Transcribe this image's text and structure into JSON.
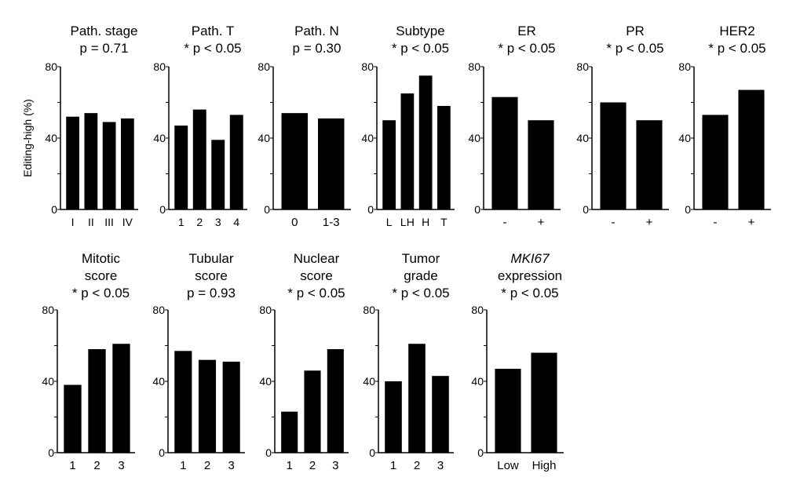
{
  "ylabel": "Editing-high (%)",
  "chart_data": [
    {
      "type": "bar",
      "title": [
        "Path. stage",
        "p = 0.71"
      ],
      "categories": [
        "I",
        "II",
        "III",
        "IV"
      ],
      "values": [
        52,
        54,
        49,
        51
      ],
      "ylim": [
        0,
        80
      ],
      "yticks": [
        0,
        40,
        80
      ]
    },
    {
      "type": "bar",
      "title": [
        "Path. T",
        "* p < 0.05"
      ],
      "categories": [
        "1",
        "2",
        "3",
        "4"
      ],
      "values": [
        47,
        56,
        39,
        53
      ],
      "ylim": [
        0,
        80
      ],
      "yticks": [
        0,
        40,
        80
      ]
    },
    {
      "type": "bar",
      "title": [
        "Path. N",
        "p = 0.30"
      ],
      "categories": [
        "0",
        "1-3"
      ],
      "values": [
        54,
        51
      ],
      "ylim": [
        0,
        80
      ],
      "yticks": [
        0,
        40,
        80
      ]
    },
    {
      "type": "bar",
      "title": [
        "Subtype",
        "* p < 0.05"
      ],
      "categories": [
        "L",
        "LH",
        "H",
        "T"
      ],
      "values": [
        50,
        65,
        75,
        58
      ],
      "ylim": [
        0,
        80
      ],
      "yticks": [
        0,
        40,
        80
      ]
    },
    {
      "type": "bar",
      "title": [
        "ER",
        "* p < 0.05"
      ],
      "categories": [
        "-",
        "+"
      ],
      "values": [
        63,
        50
      ],
      "ylim": [
        0,
        80
      ],
      "yticks": [
        0,
        40,
        80
      ]
    },
    {
      "type": "bar",
      "title": [
        "PR",
        "* p < 0.05"
      ],
      "categories": [
        "-",
        "+"
      ],
      "values": [
        60,
        50
      ],
      "ylim": [
        0,
        80
      ],
      "yticks": [
        0,
        40,
        80
      ]
    },
    {
      "type": "bar",
      "title": [
        "HER2",
        "* p < 0.05"
      ],
      "categories": [
        "-",
        "+"
      ],
      "values": [
        53,
        67
      ],
      "ylim": [
        0,
        80
      ],
      "yticks": [
        0,
        40,
        80
      ]
    },
    {
      "type": "bar",
      "title": [
        "Mitotic",
        "score",
        "* p < 0.05"
      ],
      "categories": [
        "1",
        "2",
        "3"
      ],
      "values": [
        38,
        58,
        61
      ],
      "ylim": [
        0,
        80
      ],
      "yticks": [
        0,
        40,
        80
      ]
    },
    {
      "type": "bar",
      "title": [
        "Tubular",
        "score",
        "p = 0.93"
      ],
      "categories": [
        "1",
        "2",
        "3"
      ],
      "values": [
        57,
        52,
        51
      ],
      "ylim": [
        0,
        80
      ],
      "yticks": [
        0,
        40,
        80
      ]
    },
    {
      "type": "bar",
      "title": [
        "Nuclear",
        "score",
        "* p < 0.05"
      ],
      "categories": [
        "1",
        "2",
        "3"
      ],
      "values": [
        23,
        46,
        58
      ],
      "ylim": [
        0,
        80
      ],
      "yticks": [
        0,
        40,
        80
      ]
    },
    {
      "type": "bar",
      "title": [
        "Tumor",
        "grade",
        "* p < 0.05"
      ],
      "categories": [
        "1",
        "2",
        "3"
      ],
      "values": [
        40,
        61,
        43
      ],
      "ylim": [
        0,
        80
      ],
      "yticks": [
        0,
        40,
        80
      ]
    },
    {
      "type": "bar",
      "title": [
        "MKI67",
        "expression",
        "* p < 0.05"
      ],
      "title_italic_first": true,
      "categories": [
        "Low",
        "High"
      ],
      "values": [
        47,
        56
      ],
      "ylim": [
        0,
        80
      ],
      "yticks": [
        0,
        40,
        80
      ]
    }
  ]
}
